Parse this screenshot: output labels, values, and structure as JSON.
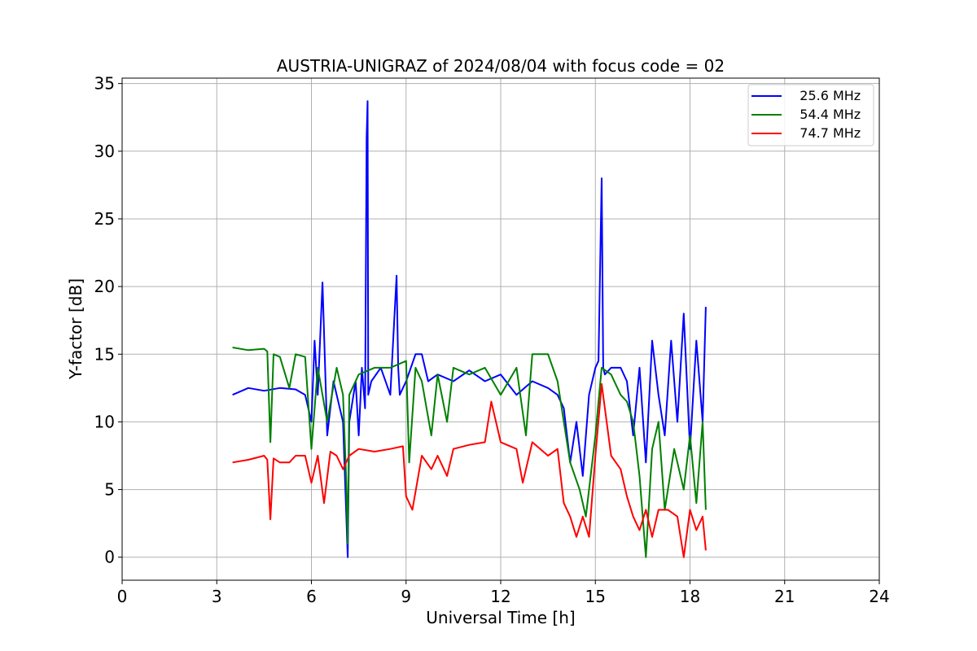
{
  "chart_data": {
    "type": "line",
    "title": "AUSTRIA-UNIGRAZ of 2024/08/04 with focus code = 02",
    "xlabel": "Universal Time [h]",
    "ylabel": "Y-factor [dB]",
    "xlim": [
      0,
      24
    ],
    "ylim": [
      -1.7,
      35.4
    ],
    "xticks": [
      0,
      3,
      6,
      9,
      12,
      15,
      18,
      21,
      24
    ],
    "yticks": [
      0,
      5,
      10,
      15,
      20,
      25,
      30,
      35
    ],
    "grid": true,
    "legend_position": "top-right",
    "series": [
      {
        "name": "   25.6 MHz",
        "color": "#0000ff",
        "x": [
          3.5,
          4.0,
          4.5,
          5.0,
          5.5,
          5.8,
          6.0,
          6.1,
          6.2,
          6.35,
          6.5,
          6.7,
          6.9,
          7.0,
          7.1,
          7.15,
          7.2,
          7.4,
          7.5,
          7.6,
          7.7,
          7.75,
          7.78,
          7.8,
          7.9,
          8.2,
          8.5,
          8.7,
          8.75,
          8.8,
          9.0,
          9.3,
          9.5,
          9.7,
          10.0,
          10.5,
          11.0,
          11.5,
          12.0,
          12.5,
          13.0,
          13.5,
          13.8,
          14.0,
          14.2,
          14.4,
          14.6,
          14.8,
          15.0,
          15.1,
          15.2,
          15.25,
          15.3,
          15.5,
          15.8,
          16.0,
          16.2,
          16.4,
          16.6,
          16.8,
          17.0,
          17.2,
          17.4,
          17.6,
          17.8,
          18.0,
          18.2,
          18.4,
          18.5
        ],
        "y": [
          12,
          12.5,
          12.3,
          12.5,
          12.4,
          12,
          10,
          16,
          12,
          20.3,
          9,
          13,
          11,
          10,
          3.5,
          0,
          10,
          13,
          9,
          14,
          11,
          31,
          33.7,
          12,
          13,
          14,
          12,
          20.8,
          14,
          12,
          13,
          15,
          15,
          13,
          13.5,
          13,
          13.8,
          13,
          13.5,
          12,
          13,
          12.5,
          12,
          11,
          7,
          10,
          6,
          12,
          14,
          14.5,
          28,
          14,
          13.5,
          14,
          14,
          13,
          9,
          14,
          7,
          16,
          12,
          9,
          16,
          10,
          18,
          8,
          16,
          10,
          18.5
        ]
      },
      {
        "name": "   54.4 MHz",
        "color": "#008000",
        "x": [
          3.5,
          4.0,
          4.5,
          4.6,
          4.7,
          4.8,
          5.0,
          5.3,
          5.5,
          5.8,
          6.0,
          6.2,
          6.5,
          6.8,
          7.0,
          7.1,
          7.15,
          7.2,
          7.5,
          8.0,
          8.5,
          9.0,
          9.1,
          9.3,
          9.5,
          9.8,
          10.0,
          10.3,
          10.5,
          11.0,
          11.5,
          12.0,
          12.5,
          12.8,
          13.0,
          13.5,
          13.8,
          14.0,
          14.2,
          14.5,
          14.7,
          15.0,
          15.2,
          15.5,
          15.8,
          16.0,
          16.2,
          16.4,
          16.6,
          16.8,
          17.0,
          17.2,
          17.5,
          17.8,
          18.0,
          18.2,
          18.4,
          18.5
        ],
        "y": [
          15.5,
          15.3,
          15.4,
          15.2,
          8.5,
          15,
          14.8,
          12.5,
          15,
          14.8,
          8,
          14,
          10,
          14,
          12,
          6,
          1,
          12,
          13.5,
          14,
          14,
          14.5,
          7,
          14,
          13,
          9,
          13.5,
          10,
          14,
          13.5,
          14,
          12,
          14,
          9,
          15,
          15,
          13,
          10,
          7,
          5,
          3,
          9,
          14,
          13.5,
          12,
          11.5,
          10,
          6,
          0,
          8,
          10,
          3.5,
          8,
          5,
          9,
          4,
          10,
          3.5
        ]
      },
      {
        "name": "   74.7 MHz",
        "color": "#ff0000",
        "x": [
          3.5,
          4.0,
          4.5,
          4.6,
          4.7,
          4.8,
          5.0,
          5.3,
          5.5,
          5.8,
          6.0,
          6.2,
          6.4,
          6.6,
          6.8,
          7.0,
          7.2,
          7.5,
          8.0,
          8.5,
          8.9,
          9.0,
          9.2,
          9.5,
          9.8,
          10.0,
          10.3,
          10.5,
          11.0,
          11.5,
          11.7,
          12.0,
          12.5,
          12.7,
          13.0,
          13.5,
          13.8,
          14.0,
          14.2,
          14.4,
          14.6,
          14.8,
          15.0,
          15.2,
          15.5,
          15.8,
          16.0,
          16.2,
          16.4,
          16.6,
          16.8,
          17.0,
          17.3,
          17.6,
          17.8,
          18.0,
          18.2,
          18.4,
          18.5
        ],
        "y": [
          7,
          7.2,
          7.5,
          7.2,
          2.8,
          7.3,
          7,
          7,
          7.5,
          7.5,
          5.5,
          7.5,
          4,
          7.8,
          7.5,
          6.5,
          7.5,
          8,
          7.8,
          8,
          8.2,
          4.5,
          3.5,
          7.5,
          6.5,
          7.5,
          6,
          8,
          8.3,
          8.5,
          11.5,
          8.5,
          8,
          5.5,
          8.5,
          7.5,
          8,
          4,
          3,
          1.5,
          3,
          1.5,
          7.5,
          12.8,
          7.5,
          6.5,
          4.5,
          3,
          2,
          3.5,
          1.5,
          3.5,
          3.5,
          3,
          0,
          3.5,
          2,
          3,
          0.5
        ]
      }
    ]
  }
}
